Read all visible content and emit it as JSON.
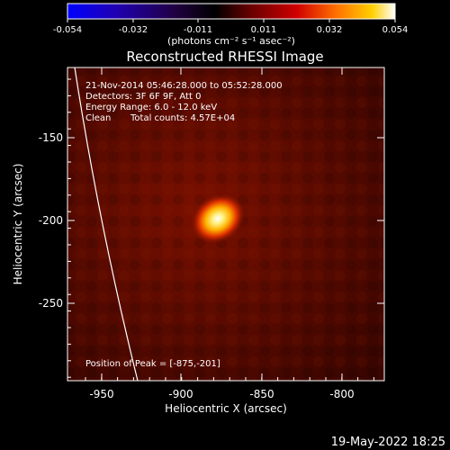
{
  "colorbar": {
    "ticks": [
      "-0.054",
      "-0.032",
      "-0.011",
      "0.011",
      "0.032",
      "0.054"
    ],
    "unit_label": "(photons cm⁻² s⁻¹ asec⁻²)",
    "stops": [
      "#0000ff",
      "#2a00a0",
      "#000000",
      "#5a0000",
      "#c00000",
      "#ff6a00",
      "#ffc000",
      "#ffffff"
    ]
  },
  "title": "Reconstructed RHESSI Image",
  "info": {
    "line1": "21-Nov-2014 05:46:28.000 to 05:52:28.000",
    "line2": "Detectors: 3F 6F 9F, Att 0",
    "line3": "Energy Range: 6.0 - 12.0 keV",
    "line4_a": "Clean",
    "line4_b": "Total counts: 4.57E+04"
  },
  "peak_text": "Position of Peak = [-875,-201]",
  "axes": {
    "xlabel": "Heliocentric X (arcsec)",
    "ylabel": "Heliocentric Y (arcsec)",
    "xticks": [
      "-950",
      "-900",
      "-850",
      "-800"
    ],
    "yticks": [
      "-150",
      "-200",
      "-250"
    ]
  },
  "footer_date": "19-May-2022 18:25"
}
